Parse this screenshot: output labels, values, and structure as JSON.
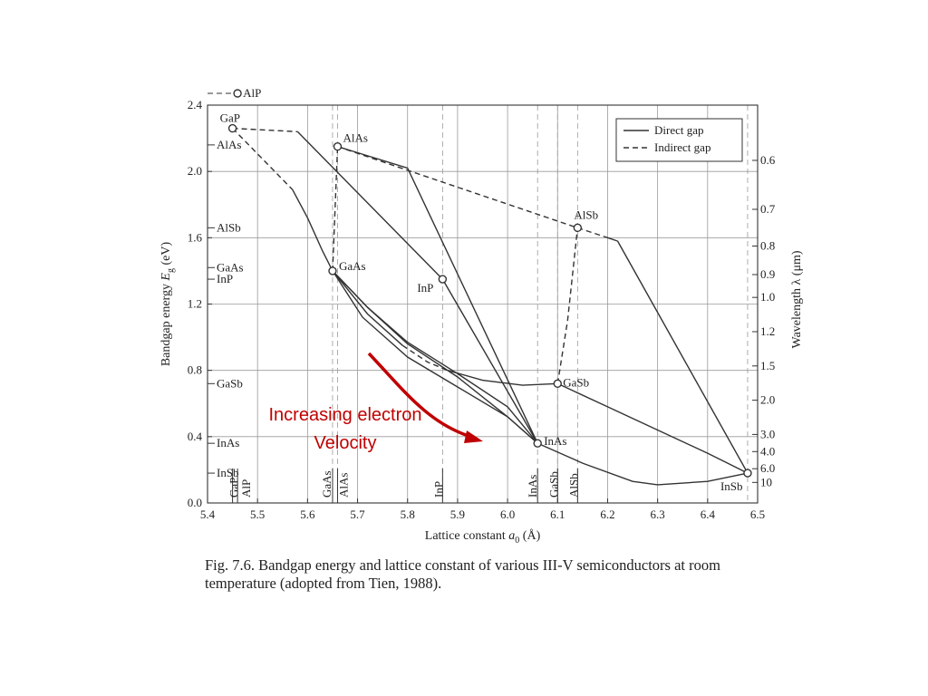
{
  "chart_data": {
    "type": "scatter",
    "xlabel_main": "Lattice constant",
    "xlabel_symbol": "a",
    "xlabel_subscript": "0",
    "xlabel_unit": "(Å)",
    "ylabel_main": "Bandgap energy",
    "ylabel_symbol": "E",
    "ylabel_subscript": "g",
    "ylabel_unit": "(eV)",
    "y2label": "Wavelength  λ  (μm)",
    "xlim": [
      5.4,
      6.5
    ],
    "ylim": [
      0.0,
      2.4
    ],
    "x_ticks": [
      "5.4",
      "5.5",
      "5.6",
      "5.7",
      "5.8",
      "5.9",
      "6.0",
      "6.1",
      "6.2",
      "6.3",
      "6.4",
      "6.5"
    ],
    "y_ticks": [
      "0.0",
      "0.4",
      "0.8",
      "1.2",
      "1.6",
      "2.0",
      "2.4"
    ],
    "wavelength_ticks": [
      {
        "label": "0.6",
        "um": 0.6
      },
      {
        "label": "0.7",
        "um": 0.7
      },
      {
        "label": "0.8",
        "um": 0.8
      },
      {
        "label": "0.9",
        "um": 0.9
      },
      {
        "label": "1.0",
        "um": 1.0
      },
      {
        "label": "1.2",
        "um": 1.2
      },
      {
        "label": "1.5",
        "um": 1.5
      },
      {
        "label": "2.0",
        "um": 2.0
      },
      {
        "label": "3.0",
        "um": 3.0
      },
      {
        "label": "4.0",
        "um": 4.0
      },
      {
        "label": "6.0",
        "um": 6.0
      },
      {
        "label": "10",
        "um": 10
      }
    ],
    "legend": {
      "position": "top-right",
      "direct": "Direct gap",
      "indirect": "Indirect gap"
    },
    "materials": [
      {
        "name": "AlP",
        "a": 5.46,
        "eg": 2.45,
        "gap": "indirect"
      },
      {
        "name": "GaP",
        "a": 5.45,
        "eg": 2.26,
        "gap": "indirect"
      },
      {
        "name": "AlAs",
        "a": 5.66,
        "eg": 2.15,
        "gap": "indirect"
      },
      {
        "name": "AlSb",
        "a": 6.14,
        "eg": 1.66,
        "gap": "indirect"
      },
      {
        "name": "GaAs",
        "a": 5.65,
        "eg": 1.4,
        "gap": "direct"
      },
      {
        "name": "InP",
        "a": 5.87,
        "eg": 1.35,
        "gap": "direct"
      },
      {
        "name": "GaSb",
        "a": 6.1,
        "eg": 0.72,
        "gap": "direct"
      },
      {
        "name": "InAs",
        "a": 6.06,
        "eg": 0.36,
        "gap": "direct"
      },
      {
        "name": "InSb",
        "a": 6.48,
        "eg": 0.18,
        "gap": "direct"
      }
    ],
    "left_markers": [
      {
        "label": "AlAs",
        "eg": 2.16
      },
      {
        "label": "AlSb",
        "eg": 1.66
      },
      {
        "label": "GaAs",
        "eg": 1.42
      },
      {
        "label": "InP",
        "eg": 1.35
      },
      {
        "label": "GaSb",
        "eg": 0.72
      },
      {
        "label": "InAs",
        "eg": 0.36
      },
      {
        "label": "InSb",
        "eg": 0.18
      }
    ],
    "bottom_markers": [
      {
        "label": "GaP",
        "a": 5.45
      },
      {
        "label": "AlP",
        "a": 5.46
      },
      {
        "label": "GaAs",
        "a": 5.65
      },
      {
        "label": "AlAs",
        "a": 5.66
      },
      {
        "label": "InP",
        "a": 5.87
      },
      {
        "label": "InAs",
        "a": 6.06
      },
      {
        "label": "GaSb",
        "a": 6.1
      },
      {
        "label": "AlSb",
        "a": 6.14
      }
    ],
    "curves": [
      {
        "gap": "indirect",
        "points": [
          [
            5.45,
            2.26
          ],
          [
            5.58,
            2.24
          ]
        ]
      },
      {
        "gap": "direct",
        "points": [
          [
            5.58,
            2.24
          ],
          [
            5.87,
            1.35
          ]
        ]
      },
      {
        "gap": "indirect",
        "points": [
          [
            5.45,
            2.26
          ],
          [
            5.57,
            1.89
          ]
        ]
      },
      {
        "gap": "direct",
        "points": [
          [
            5.57,
            1.89
          ],
          [
            5.6,
            1.72
          ],
          [
            5.63,
            1.52
          ],
          [
            5.65,
            1.4
          ]
        ]
      },
      {
        "gap": "indirect",
        "points": [
          [
            5.65,
            1.4
          ],
          [
            5.66,
            2.15
          ]
        ]
      },
      {
        "gap": "indirect",
        "points": [
          [
            5.66,
            2.15
          ],
          [
            6.14,
            1.66
          ]
        ]
      },
      {
        "gap": "indirect",
        "points": [
          [
            6.14,
            1.66
          ],
          [
            6.2,
            1.6
          ]
        ]
      },
      {
        "gap": "direct",
        "points": [
          [
            6.2,
            1.6
          ],
          [
            6.22,
            1.58
          ]
        ]
      },
      {
        "gap": "direct",
        "points": [
          [
            6.22,
            1.58
          ],
          [
            6.48,
            0.18
          ]
        ]
      },
      {
        "gap": "direct",
        "points": [
          [
            5.66,
            2.15
          ],
          [
            5.8,
            2.02
          ],
          [
            6.06,
            0.36
          ]
        ]
      },
      {
        "gap": "direct",
        "points": [
          [
            5.87,
            1.35
          ],
          [
            6.06,
            0.36
          ]
        ]
      },
      {
        "gap": "direct",
        "points": [
          [
            5.65,
            1.4
          ],
          [
            5.72,
            1.18
          ],
          [
            5.8,
            0.97
          ],
          [
            5.9,
            0.78
          ],
          [
            6.0,
            0.58
          ],
          [
            6.06,
            0.36
          ]
        ]
      },
      {
        "gap": "direct",
        "points": [
          [
            5.65,
            1.4
          ],
          [
            5.72,
            1.18
          ],
          [
            5.8,
            0.96
          ],
          [
            5.9,
            0.76
          ],
          [
            6.0,
            0.52
          ],
          [
            6.06,
            0.36
          ]
        ]
      },
      {
        "gap": "direct",
        "points": [
          [
            5.65,
            1.4
          ],
          [
            5.71,
            1.12
          ],
          [
            5.8,
            0.88
          ],
          [
            5.9,
            0.7
          ],
          [
            6.0,
            0.52
          ],
          [
            6.06,
            0.36
          ]
        ]
      },
      {
        "gap": "direct",
        "points": [
          [
            5.65,
            1.4
          ],
          [
            5.72,
            1.14
          ],
          [
            5.79,
            0.95
          ]
        ]
      },
      {
        "gap": "indirect",
        "points": [
          [
            5.79,
            0.95
          ],
          [
            5.84,
            0.85
          ],
          [
            5.88,
            0.8
          ]
        ]
      },
      {
        "gap": "direct",
        "points": [
          [
            5.88,
            0.8
          ],
          [
            5.95,
            0.74
          ],
          [
            6.03,
            0.71
          ],
          [
            6.1,
            0.72
          ]
        ]
      },
      {
        "gap": "indirect",
        "points": [
          [
            6.1,
            0.72
          ],
          [
            6.12,
            1.1
          ],
          [
            6.14,
            1.66
          ]
        ]
      },
      {
        "gap": "direct",
        "points": [
          [
            6.1,
            0.72
          ],
          [
            6.2,
            0.58
          ],
          [
            6.3,
            0.44
          ],
          [
            6.4,
            0.3
          ],
          [
            6.48,
            0.18
          ]
        ]
      },
      {
        "gap": "direct",
        "points": [
          [
            6.06,
            0.36
          ],
          [
            6.15,
            0.24
          ],
          [
            6.25,
            0.13
          ],
          [
            6.3,
            0.11
          ],
          [
            6.4,
            0.13
          ],
          [
            6.48,
            0.18
          ]
        ]
      }
    ]
  },
  "annotation": {
    "line1": "Increasing electron",
    "line2": "Velocity",
    "color": "#c00000"
  },
  "caption": {
    "text": "Fig. 7.6. Bandgap energy and lattice constant of various III-V semiconductors at room temperature (adopted from Tien, 1988)."
  }
}
